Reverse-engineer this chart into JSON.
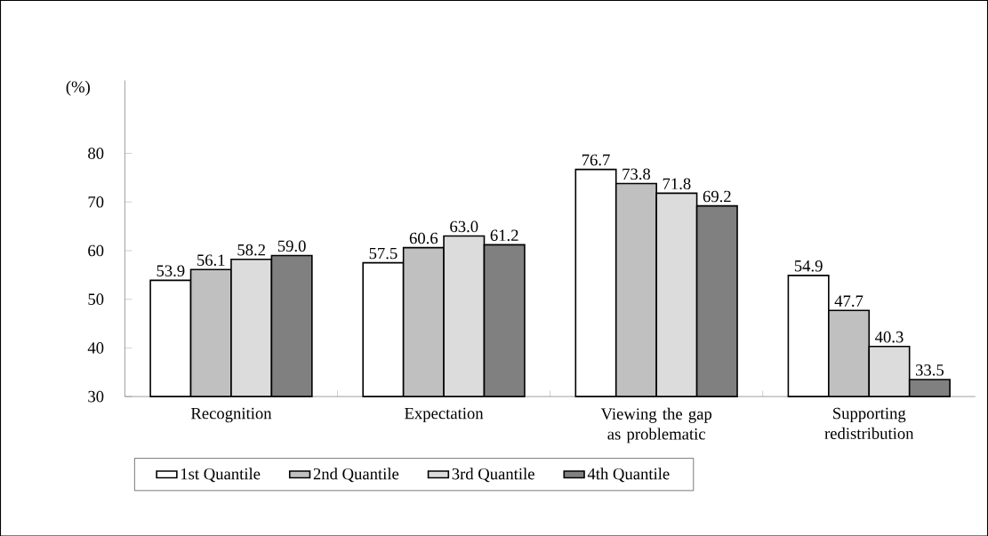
{
  "chart_data": {
    "type": "bar",
    "ylabel": "(%)",
    "categories": [
      "Recognition",
      "Expectation",
      "Viewing the gap as problematic",
      "Supporting redistribution"
    ],
    "series": [
      {
        "name": "1st Quantile",
        "color": "#ffffff",
        "values": [
          53.9,
          57.5,
          76.7,
          54.9
        ],
        "value_labels": [
          "53.9",
          "57.5",
          "76.7",
          "54.9"
        ]
      },
      {
        "name": "2nd Quantile",
        "color": "#c0c0c0",
        "values": [
          56.1,
          60.6,
          73.8,
          47.7
        ],
        "value_labels": [
          "56.1",
          "60.6",
          "73.8",
          "47.7"
        ]
      },
      {
        "name": "3rd Quantile",
        "color": "#dcdcdc",
        "values": [
          58.2,
          63.0,
          71.8,
          40.3
        ],
        "value_labels": [
          "58.2",
          "63.0",
          "71.8",
          "40.3"
        ]
      },
      {
        "name": "4th Quantile",
        "color": "#808080",
        "values": [
          59.0,
          61.2,
          69.2,
          33.5
        ],
        "value_labels": [
          "59.0",
          "61.2",
          "69.2",
          "33.5"
        ]
      }
    ],
    "ylim": [
      30,
      95
    ],
    "yticks": [
      30,
      40,
      50,
      60,
      70,
      80
    ],
    "grid": false,
    "legend": "bottom"
  }
}
